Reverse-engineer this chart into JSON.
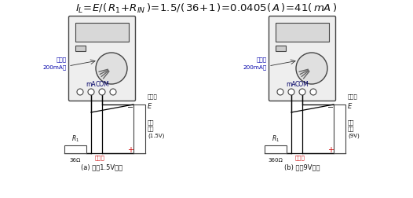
{
  "bg_color": "#ffffff",
  "title": "I_L=E/( R_1+R_IN )=1.5/( 36+1 )=0.0405( A )=41( mA )",
  "label_a": "(a) 检测1.5V电池",
  "label_b": "(b) 检测9V电池",
  "r1_label_a": "36Ω",
  "r1_label_b": "360Ω",
  "battery_label_a": "被测\n电池\n(1.5V)",
  "battery_label_b": "被测\n电池\n(9V)",
  "dial_label_line1": "置直流",
  "dial_label_line2": "200mA挡",
  "black_pen": "黑表笔",
  "red_pen": "红表笔",
  "E_label": "E",
  "R1_label": "R_1",
  "mA_label": "mA",
  "COM_label": "COM"
}
